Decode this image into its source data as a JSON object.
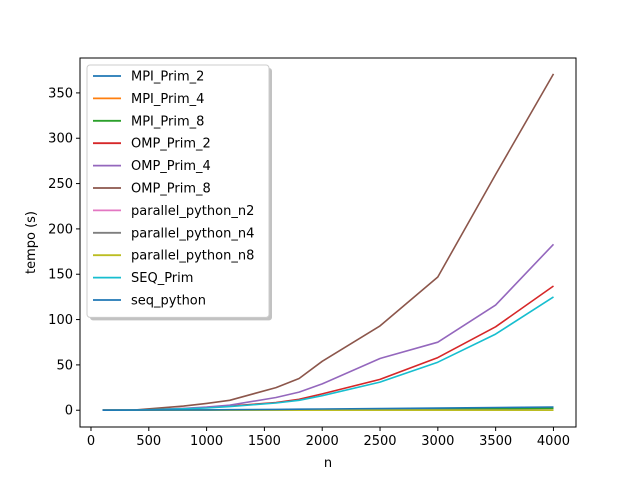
{
  "chart_data": {
    "type": "line",
    "title": "",
    "xlabel": "n",
    "ylabel": "tempo (s)",
    "xlim": [
      -95,
      4195
    ],
    "ylim": [
      -18.5,
      388.5
    ],
    "xticks": [
      0,
      500,
      1000,
      1500,
      2000,
      2500,
      3000,
      3500,
      4000
    ],
    "yticks": [
      0,
      50,
      100,
      150,
      200,
      250,
      300,
      350
    ],
    "grid": false,
    "legend_position": "top-left",
    "x": [
      100,
      400,
      800,
      1000,
      1200,
      1600,
      1800,
      2000,
      2500,
      3000,
      3500,
      4000
    ],
    "series": [
      {
        "name": "MPI_Prim_2",
        "color": "#1f77b4",
        "values": [
          0,
          0,
          0.1,
          0.1,
          0.2,
          0.3,
          0.4,
          0.5,
          0.8,
          1.2,
          1.7,
          2.3
        ]
      },
      {
        "name": "MPI_Prim_4",
        "color": "#ff7f0e",
        "values": [
          0,
          0,
          0.1,
          0.1,
          0.2,
          0.3,
          0.4,
          0.5,
          0.8,
          1.2,
          1.7,
          2.2
        ]
      },
      {
        "name": "MPI_Prim_8",
        "color": "#2ca02c",
        "values": [
          0,
          0,
          0.1,
          0.1,
          0.2,
          0.3,
          0.4,
          0.5,
          0.8,
          1.2,
          1.6,
          2.1
        ]
      },
      {
        "name": "OMP_Prim_2",
        "color": "#d62728",
        "values": [
          0,
          0.3,
          1.8,
          3.0,
          4.5,
          8.5,
          12,
          18,
          34,
          58,
          92,
          137
        ]
      },
      {
        "name": "OMP_Prim_4",
        "color": "#9467bd",
        "values": [
          0,
          0.4,
          2.0,
          3.5,
          5.5,
          14,
          20,
          29,
          57,
          75,
          116,
          183
        ]
      },
      {
        "name": "OMP_Prim_8",
        "color": "#8c564b",
        "values": [
          0,
          0.5,
          4.5,
          7.5,
          11,
          25,
          35,
          54,
          93,
          147,
          260,
          371
        ]
      },
      {
        "name": "parallel_python_n2",
        "color": "#e377c2",
        "values": [
          0,
          0,
          0,
          0,
          0,
          0,
          0,
          0,
          0,
          0,
          0,
          0
        ]
      },
      {
        "name": "parallel_python_n4",
        "color": "#7f7f7f",
        "values": [
          0,
          0,
          0,
          0,
          0,
          0,
          0,
          0,
          0,
          0,
          0,
          0
        ]
      },
      {
        "name": "parallel_python_n8",
        "color": "#bcbd22",
        "values": [
          0,
          0,
          0,
          0,
          0,
          0,
          0,
          0,
          0,
          0,
          0,
          0
        ]
      },
      {
        "name": "SEQ_Prim",
        "color": "#17becf",
        "values": [
          0,
          0.3,
          1.6,
          2.5,
          4.0,
          8.0,
          11,
          16,
          31,
          53,
          84,
          125
        ]
      },
      {
        "name": "seq_python",
        "color": "#1f77b4",
        "values": [
          0,
          0.1,
          0.3,
          0.4,
          0.6,
          0.9,
          1.1,
          1.3,
          1.8,
          2.4,
          3.0,
          3.6
        ]
      }
    ]
  }
}
